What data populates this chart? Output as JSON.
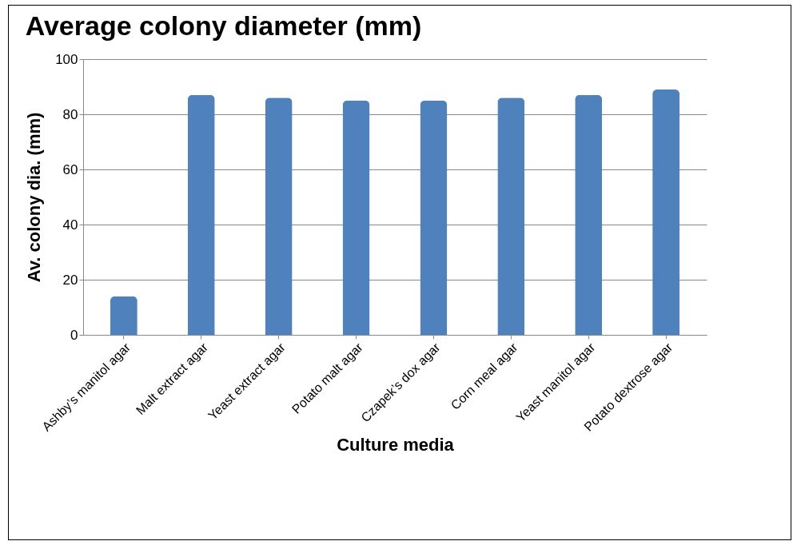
{
  "chart_data": {
    "type": "bar",
    "title": "Average colony diameter (mm)",
    "xlabel": "Culture media",
    "ylabel": "Av. colony dia. (mm)",
    "categories": [
      "Ashby’s manitol agar",
      "Malt extract agar",
      "Yeast extract agar",
      "Potato malt agar",
      "Czapek’s dox agar",
      "Corn meal agar",
      "Yeast manitol agar",
      "Potato dextrose agar"
    ],
    "values": [
      14,
      87,
      86,
      85,
      85,
      86,
      87,
      89
    ],
    "color": "#4f81bd",
    "ylim": [
      0,
      100
    ],
    "yticks": [
      0,
      20,
      40,
      60,
      80,
      100
    ],
    "grid": "y",
    "legend": false
  }
}
